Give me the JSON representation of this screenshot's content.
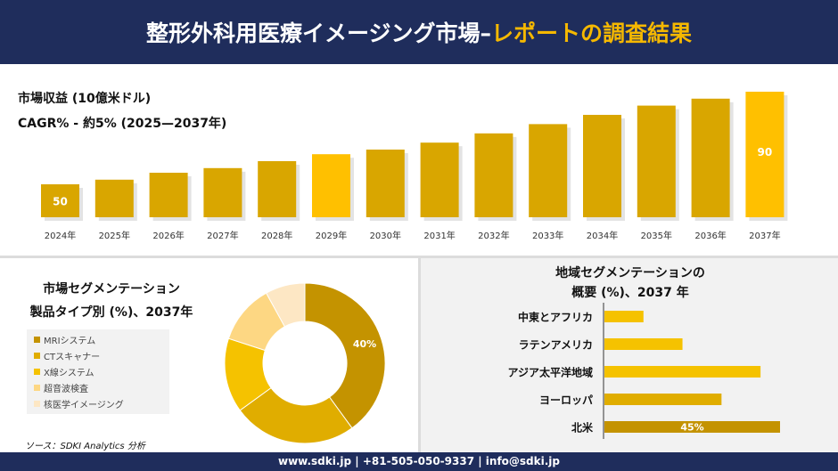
{
  "header": {
    "title_main": "整形外科用医療イメージング市場",
    "title_sep": "–",
    "title_accent": "レポートの調査結果"
  },
  "market_panel": {
    "line1": "市場収益 (10億米ドル)",
    "line2": "CAGR% - 約5% (2025—2037年)"
  },
  "product_panel": {
    "title_line1": "市場セグメンテーション",
    "title_line2": "製品タイプ別 (%)、2037年"
  },
  "region_panel": {
    "title_line1": "地域セグメンテーションの",
    "title_line2": "概要 (%)、2037 年"
  },
  "source": "ソース：SDKI Analytics 分析",
  "footer": "www.sdki.jp | +81-505-050-9337 | info@sdki.jp",
  "colors": {
    "navy": "#1f2d5c",
    "accent": "#f5b800",
    "bar": "#d9a600",
    "bar_highlight": "#ffc000"
  },
  "chart_data": [
    {
      "type": "bar",
      "categories": [
        "2024年",
        "2025年",
        "2026年",
        "2027年",
        "2028年",
        "2029年",
        "2030年",
        "2031年",
        "2032年",
        "2033年",
        "2034年",
        "2035年",
        "2036年",
        "2037年"
      ],
      "values": [
        50,
        52,
        55,
        57,
        60,
        63,
        65,
        68,
        72,
        76,
        80,
        84,
        87,
        90
      ],
      "data_labels": {
        "0": "50",
        "13": "90"
      },
      "ylim": [
        0,
        90
      ],
      "highlight": [
        5,
        13
      ]
    },
    {
      "type": "pie",
      "donut": true,
      "categories": [
        "MRIシステム",
        "CTスキャナー",
        "X線システム",
        "超音波検査",
        "核医学イメージング"
      ],
      "values": [
        40,
        25,
        15,
        12,
        8
      ],
      "data_labels": {
        "0": "40%"
      },
      "colors": [
        "#c49300",
        "#e0ad00",
        "#f5c200",
        "#fdd783",
        "#fde7c4"
      ],
      "legend": "left"
    },
    {
      "type": "bar",
      "orientation": "horizontal",
      "categories": [
        "中東とアフリカ",
        "ラテンアメリカ",
        "アジア太平洋地域",
        "ヨーロッパ",
        "北米"
      ],
      "values": [
        10,
        20,
        40,
        30,
        45
      ],
      "data_labels": {
        "4": "45%"
      },
      "xlim": [
        0,
        45
      ],
      "colors": [
        "#f5c200",
        "#f5c200",
        "#f5c200",
        "#e0ad00",
        "#c49300"
      ]
    }
  ]
}
